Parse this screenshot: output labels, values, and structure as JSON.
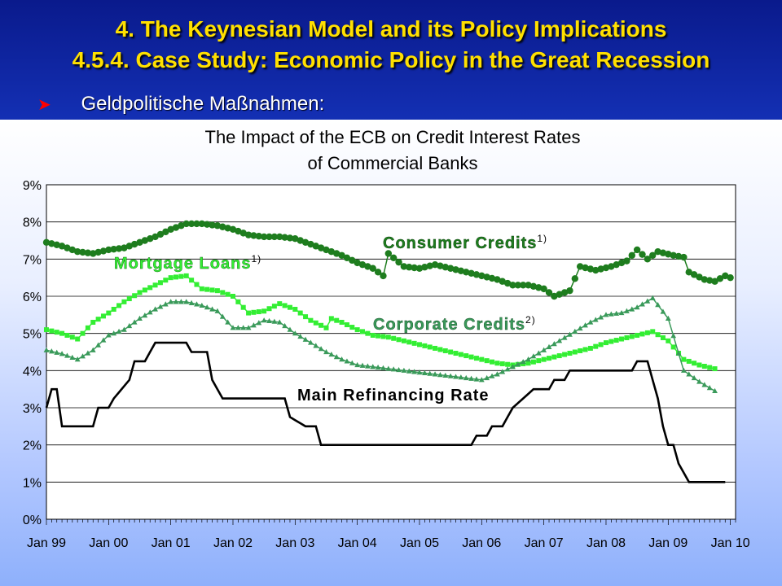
{
  "header": {
    "title_line1": "4. The Keynesian Model and its Policy Implications",
    "title_line2": "4.5.4. Case Study: Economic Policy in the Great Recession",
    "bullet_text": "Geldpolitische Maßnahmen:"
  },
  "chart_data": {
    "type": "line",
    "title_line1": "The Impact of the ECB on Credit Interest Rates",
    "title_line2": "of Commercial Banks",
    "x_tick_labels": [
      "Jan 99",
      "Jan 00",
      "Jan 01",
      "Jan 02",
      "Jan 03",
      "Jan 04",
      "Jan 05",
      "Jan 06",
      "Jan 07",
      "Jan 08",
      "Jan 09",
      "Jan 10"
    ],
    "y_tick_labels": [
      "0%",
      "1%",
      "2%",
      "3%",
      "4%",
      "5%",
      "6%",
      "7%",
      "8%",
      "9%"
    ],
    "xlim": [
      "1999-01",
      "2010-02"
    ],
    "ylim": [
      0,
      9
    ],
    "grid": "horizontal",
    "series": [
      {
        "name": "Consumer Credits",
        "superscript": "1)",
        "color": "#1e7d1e",
        "marker": "circle",
        "points": [
          [
            "1999-01",
            7.45
          ],
          [
            "1999-04",
            7.35
          ],
          [
            "1999-07",
            7.2
          ],
          [
            "1999-10",
            7.15
          ],
          [
            "2000-01",
            7.25
          ],
          [
            "2000-04",
            7.3
          ],
          [
            "2000-07",
            7.45
          ],
          [
            "2000-10",
            7.6
          ],
          [
            "2001-01",
            7.8
          ],
          [
            "2001-04",
            7.95
          ],
          [
            "2001-07",
            7.95
          ],
          [
            "2001-10",
            7.9
          ],
          [
            "2002-01",
            7.8
          ],
          [
            "2002-04",
            7.65
          ],
          [
            "2002-07",
            7.6
          ],
          [
            "2002-10",
            7.6
          ],
          [
            "2003-01",
            7.55
          ],
          [
            "2003-04",
            7.4
          ],
          [
            "2003-07",
            7.25
          ],
          [
            "2003-10",
            7.1
          ],
          [
            "2004-01",
            6.9
          ],
          [
            "2004-04",
            6.75
          ],
          [
            "2004-06",
            6.55
          ],
          [
            "2004-07",
            7.15
          ],
          [
            "2004-10",
            6.8
          ],
          [
            "2005-01",
            6.75
          ],
          [
            "2005-04",
            6.85
          ],
          [
            "2005-07",
            6.75
          ],
          [
            "2005-10",
            6.65
          ],
          [
            "2006-01",
            6.55
          ],
          [
            "2006-04",
            6.45
          ],
          [
            "2006-07",
            6.3
          ],
          [
            "2006-10",
            6.3
          ],
          [
            "2007-01",
            6.2
          ],
          [
            "2007-03",
            6.0
          ],
          [
            "2007-06",
            6.15
          ],
          [
            "2007-08",
            6.8
          ],
          [
            "2007-11",
            6.7
          ],
          [
            "2008-02",
            6.8
          ],
          [
            "2008-05",
            6.95
          ],
          [
            "2008-07",
            7.25
          ],
          [
            "2008-09",
            7.0
          ],
          [
            "2008-11",
            7.2
          ],
          [
            "2009-02",
            7.1
          ],
          [
            "2009-04",
            7.05
          ],
          [
            "2009-05",
            6.65
          ],
          [
            "2009-08",
            6.45
          ],
          [
            "2009-10",
            6.4
          ],
          [
            "2009-12",
            6.55
          ],
          [
            "2010-01",
            6.5
          ]
        ]
      },
      {
        "name": "Mortgage Loans",
        "superscript": "1)",
        "color": "#33ee33",
        "marker": "square",
        "points": [
          [
            "1999-01",
            5.1
          ],
          [
            "1999-04",
            5.0
          ],
          [
            "1999-07",
            4.85
          ],
          [
            "1999-10",
            5.3
          ],
          [
            "2000-01",
            5.55
          ],
          [
            "2000-04",
            5.85
          ],
          [
            "2000-07",
            6.1
          ],
          [
            "2000-10",
            6.3
          ],
          [
            "2001-01",
            6.5
          ],
          [
            "2001-04",
            6.55
          ],
          [
            "2001-07",
            6.2
          ],
          [
            "2001-10",
            6.15
          ],
          [
            "2002-01",
            6.0
          ],
          [
            "2002-04",
            5.55
          ],
          [
            "2002-07",
            5.6
          ],
          [
            "2002-10",
            5.8
          ],
          [
            "2003-01",
            5.65
          ],
          [
            "2003-04",
            5.35
          ],
          [
            "2003-07",
            5.15
          ],
          [
            "2003-08",
            5.4
          ],
          [
            "2003-10",
            5.3
          ],
          [
            "2004-01",
            5.1
          ],
          [
            "2004-04",
            4.95
          ],
          [
            "2004-07",
            4.9
          ],
          [
            "2004-10",
            4.8
          ],
          [
            "2005-01",
            4.7
          ],
          [
            "2005-04",
            4.6
          ],
          [
            "2005-07",
            4.5
          ],
          [
            "2005-10",
            4.4
          ],
          [
            "2006-01",
            4.3
          ],
          [
            "2006-04",
            4.2
          ],
          [
            "2006-07",
            4.15
          ],
          [
            "2006-10",
            4.2
          ],
          [
            "2007-01",
            4.3
          ],
          [
            "2007-04",
            4.4
          ],
          [
            "2007-07",
            4.5
          ],
          [
            "2007-10",
            4.6
          ],
          [
            "2008-01",
            4.75
          ],
          [
            "2008-04",
            4.85
          ],
          [
            "2008-07",
            4.95
          ],
          [
            "2008-10",
            5.05
          ],
          [
            "2009-01",
            4.8
          ],
          [
            "2009-04",
            4.3
          ],
          [
            "2009-07",
            4.15
          ],
          [
            "2009-10",
            4.05
          ]
        ]
      },
      {
        "name": "Corporate Credits",
        "superscript": "2)",
        "color": "#3a9a5a",
        "marker": "triangle",
        "points": [
          [
            "1999-01",
            4.55
          ],
          [
            "1999-04",
            4.45
          ],
          [
            "1999-07",
            4.3
          ],
          [
            "1999-10",
            4.55
          ],
          [
            "2000-01",
            4.95
          ],
          [
            "2000-04",
            5.1
          ],
          [
            "2000-07",
            5.4
          ],
          [
            "2000-10",
            5.65
          ],
          [
            "2001-01",
            5.85
          ],
          [
            "2001-04",
            5.85
          ],
          [
            "2001-07",
            5.75
          ],
          [
            "2001-10",
            5.6
          ],
          [
            "2002-01",
            5.15
          ],
          [
            "2002-04",
            5.15
          ],
          [
            "2002-07",
            5.35
          ],
          [
            "2002-10",
            5.3
          ],
          [
            "2003-01",
            5.0
          ],
          [
            "2003-04",
            4.75
          ],
          [
            "2003-07",
            4.5
          ],
          [
            "2003-10",
            4.3
          ],
          [
            "2004-01",
            4.15
          ],
          [
            "2004-04",
            4.1
          ],
          [
            "2004-07",
            4.05
          ],
          [
            "2004-10",
            4.0
          ],
          [
            "2005-01",
            3.95
          ],
          [
            "2005-04",
            3.9
          ],
          [
            "2005-07",
            3.85
          ],
          [
            "2005-10",
            3.8
          ],
          [
            "2006-01",
            3.75
          ],
          [
            "2006-04",
            3.9
          ],
          [
            "2006-07",
            4.1
          ],
          [
            "2006-10",
            4.3
          ],
          [
            "2007-01",
            4.55
          ],
          [
            "2007-04",
            4.8
          ],
          [
            "2007-07",
            5.05
          ],
          [
            "2007-10",
            5.3
          ],
          [
            "2008-01",
            5.5
          ],
          [
            "2008-04",
            5.55
          ],
          [
            "2008-07",
            5.7
          ],
          [
            "2008-10",
            5.95
          ],
          [
            "2009-01",
            5.4
          ],
          [
            "2009-04",
            4.0
          ],
          [
            "2009-07",
            3.7
          ],
          [
            "2009-10",
            3.45
          ]
        ]
      },
      {
        "name": "Main Refinancing Rate",
        "superscript": "",
        "color": "#000000",
        "marker": "none",
        "points": [
          [
            "1999-01",
            3.0
          ],
          [
            "1999-02",
            3.5
          ],
          [
            "1999-03",
            3.5
          ],
          [
            "1999-04",
            2.5
          ],
          [
            "1999-10",
            2.5
          ],
          [
            "1999-11",
            3.0
          ],
          [
            "2000-01",
            3.0
          ],
          [
            "2000-02",
            3.25
          ],
          [
            "2000-05",
            3.75
          ],
          [
            "2000-06",
            4.25
          ],
          [
            "2000-08",
            4.25
          ],
          [
            "2000-10",
            4.75
          ],
          [
            "2001-04",
            4.75
          ],
          [
            "2001-05",
            4.5
          ],
          [
            "2001-08",
            4.5
          ],
          [
            "2001-09",
            3.75
          ],
          [
            "2001-11",
            3.25
          ],
          [
            "2002-11",
            3.25
          ],
          [
            "2002-12",
            2.75
          ],
          [
            "2003-03",
            2.5
          ],
          [
            "2003-05",
            2.5
          ],
          [
            "2003-06",
            2.0
          ],
          [
            "2005-11",
            2.0
          ],
          [
            "2005-12",
            2.25
          ],
          [
            "2006-02",
            2.25
          ],
          [
            "2006-03",
            2.5
          ],
          [
            "2006-05",
            2.5
          ],
          [
            "2006-06",
            2.75
          ],
          [
            "2006-07",
            3.0
          ],
          [
            "2006-09",
            3.25
          ],
          [
            "2006-11",
            3.5
          ],
          [
            "2007-02",
            3.5
          ],
          [
            "2007-03",
            3.75
          ],
          [
            "2007-05",
            3.75
          ],
          [
            "2007-06",
            4.0
          ],
          [
            "2008-06",
            4.0
          ],
          [
            "2008-07",
            4.25
          ],
          [
            "2008-09",
            4.25
          ],
          [
            "2008-10",
            3.75
          ],
          [
            "2008-11",
            3.25
          ],
          [
            "2008-12",
            2.5
          ],
          [
            "2009-01",
            2.0
          ],
          [
            "2009-02",
            2.0
          ],
          [
            "2009-03",
            1.5
          ],
          [
            "2009-04",
            1.25
          ],
          [
            "2009-05",
            1.0
          ],
          [
            "2009-12",
            1.0
          ]
        ]
      }
    ]
  }
}
